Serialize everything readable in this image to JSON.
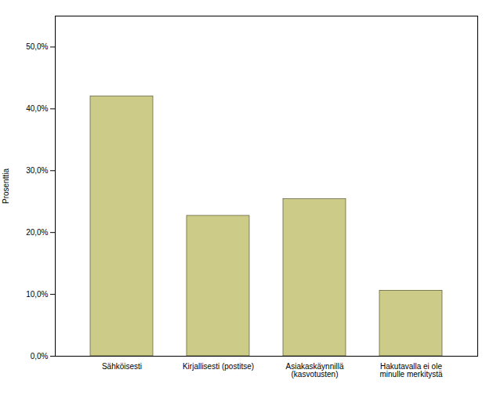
{
  "chart_data": {
    "type": "bar",
    "categories": [
      "Sähköisesti",
      "Kirjallisesti (postitse)",
      "Asiakaskäynnillä\n(kasvotusten)",
      "Hakutavalla ei ole\nminulle merkitystä"
    ],
    "values": [
      42.0,
      22.7,
      25.4,
      10.6
    ],
    "color": "#cccc88",
    "ylabel": "Prosenttia",
    "ylim": [
      0,
      55
    ],
    "yticks": [
      {
        "value": 0.0,
        "label": "0,0%"
      },
      {
        "value": 10.0,
        "label": "10,0%"
      },
      {
        "value": 20.0,
        "label": "20,0%"
      },
      {
        "value": 30.0,
        "label": "30,0%"
      },
      {
        "value": 40.0,
        "label": "40,0%"
      },
      {
        "value": 50.0,
        "label": "50,0%"
      }
    ],
    "grid": false
  }
}
